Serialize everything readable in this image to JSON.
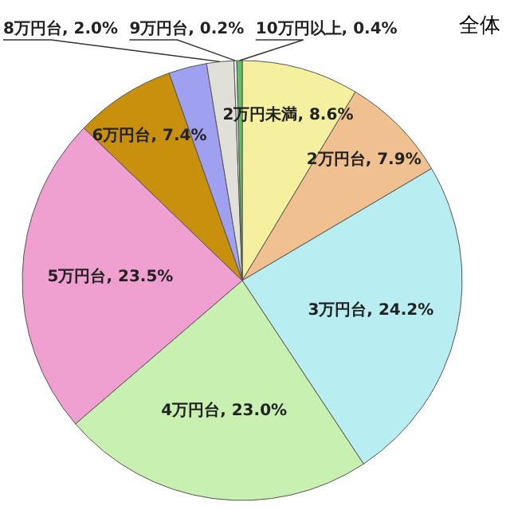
{
  "chart_data": {
    "type": "pie",
    "title": "全体",
    "categories": [
      "2万円未満",
      "2万円台",
      "3万円台",
      "4万円台",
      "5万円台",
      "6万円台",
      null,
      "8万円台",
      "9万円台",
      "10万円以上"
    ],
    "values": [
      8.6,
      7.9,
      24.2,
      23.0,
      23.5,
      7.4,
      2.8,
      2.0,
      0.2,
      0.4
    ],
    "value_labels": [
      "8.6%",
      "7.9%",
      "24.2%",
      "23.0%",
      "23.5%",
      "7.4%",
      null,
      "2.0%",
      "0.2%",
      "0.4%"
    ],
    "colors": [
      "#f4f0a0",
      "#f0c090",
      "#b8eef2",
      "#c8f0b0",
      "#f0a0d0",
      "#c8900c",
      "#a0a0f0",
      "#e0e0d8",
      "#f4f4f4",
      "#60c060"
    ]
  }
}
